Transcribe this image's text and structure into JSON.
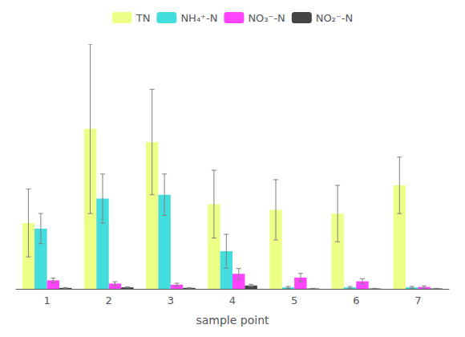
{
  "chart_data": {
    "type": "bar",
    "categories": [
      "1",
      "2",
      "3",
      "4",
      "5",
      "6",
      "7"
    ],
    "series": [
      {
        "name": "TN",
        "color": "#EEFF88",
        "values": [
          3.5,
          8.5,
          7.8,
          4.5,
          4.2,
          4.0,
          5.5
        ],
        "errors": [
          1.8,
          4.5,
          2.8,
          1.8,
          1.6,
          1.5,
          1.5
        ]
      },
      {
        "name": "NH₄⁺-N",
        "color": "#44DDDD",
        "values": [
          3.2,
          4.8,
          5.0,
          2.0,
          0.08,
          0.08,
          0.08
        ],
        "errors": [
          0.8,
          1.3,
          1.1,
          0.9,
          0.05,
          0.05,
          0.05
        ]
      },
      {
        "name": "NO₃⁻-N",
        "color": "#FF44FF",
        "values": [
          0.45,
          0.28,
          0.22,
          0.8,
          0.6,
          0.4,
          0.1
        ],
        "errors": [
          0.12,
          0.1,
          0.08,
          0.28,
          0.22,
          0.14,
          0.06
        ]
      },
      {
        "name": "NO₂⁻-N",
        "color": "#444444",
        "values": [
          0.05,
          0.08,
          0.05,
          0.18,
          0.02,
          0.02,
          0.02
        ],
        "errors": [
          0.02,
          0.03,
          0.02,
          0.06,
          0.01,
          0.01,
          0.01
        ]
      }
    ],
    "xlabel": "sample point",
    "ylim": [
      0,
      13
    ],
    "grid": false,
    "legend": "top",
    "tick_labels": "x"
  }
}
